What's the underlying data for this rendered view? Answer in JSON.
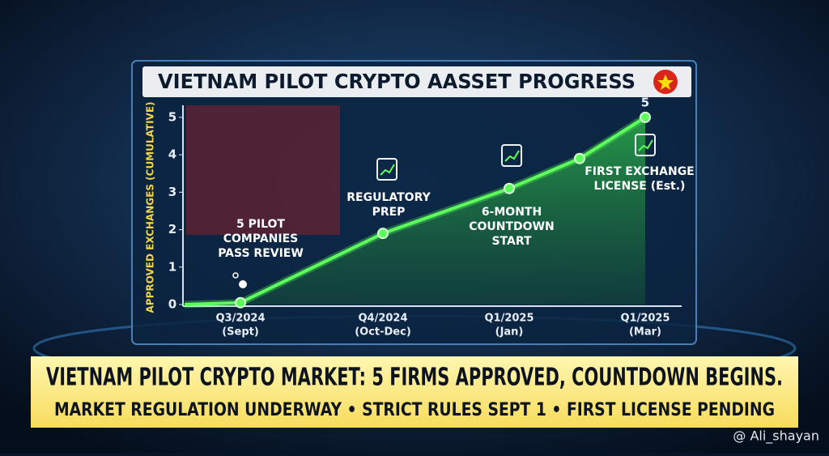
{
  "chart_data": {
    "type": "line",
    "title": "VIETNAM PILOT CRYPTO AASSET PROGRESS",
    "y_label": "APPROVED EXCHANGES (CUMULATIVE)",
    "categories": [
      null,
      "Q3/2024",
      "Q4/2024",
      "Q1/2025",
      null,
      "Q1/2025"
    ],
    "category_sublabels": [
      null,
      "(Sept)",
      "(Oct-Dec)",
      "(Jan)",
      null,
      "(Mar)"
    ],
    "series": [
      {
        "name": "Approved exchanges",
        "color": "#5dff5a",
        "values": [
          0,
          0.05,
          1.9,
          3.1,
          3.9,
          5
        ]
      }
    ],
    "ylim": [
      0,
      5.3
    ],
    "yticks": [
      0,
      1,
      2,
      3,
      4,
      5
    ],
    "annotations": [
      {
        "lines": [
          "5 PILOT",
          "COMPANIES",
          "PASS REVIEW"
        ]
      },
      {
        "lines": [
          "REGULATORY",
          "PREP"
        ]
      },
      {
        "lines": [
          "6-MONTH",
          "COUNTDOWN",
          "START"
        ]
      },
      {
        "lines": [
          "FIRST EXCHANGE",
          "LICENSE (Est.)"
        ]
      }
    ],
    "banner": {
      "headline": "VIETNAM PILOT CRYPTO MARKET: 5 FIRMS APPROVED, COUNTDOWN BEGINS.",
      "subline": "MARKET REGULATION UNDERWAY • STRICT RULES SEPT 1 • FIRST LICENSE PENDING"
    },
    "watermark": "@ Ali_shayan"
  }
}
